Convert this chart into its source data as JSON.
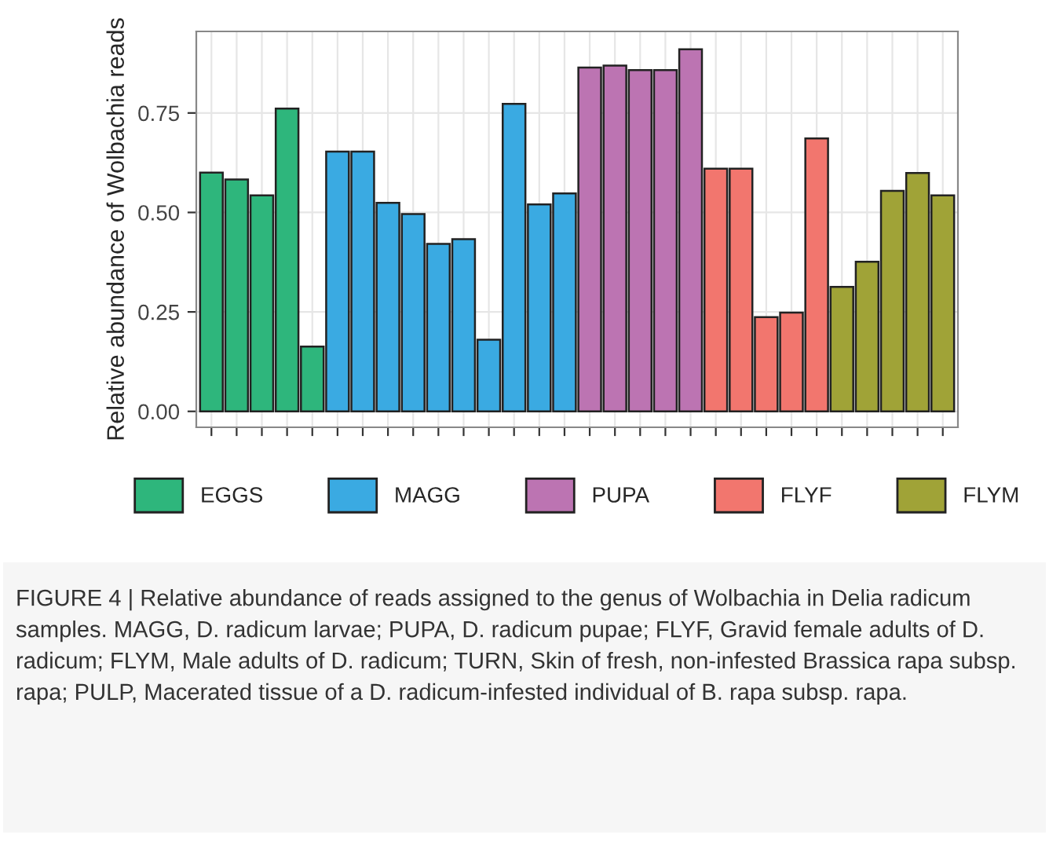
{
  "chart_data": {
    "type": "bar",
    "ylabel": "Relative abundance of Wolbachia reads",
    "categories": [
      null,
      null,
      null,
      null,
      null,
      null,
      null,
      null,
      null,
      null,
      null,
      null,
      null,
      null,
      null,
      null,
      null,
      null,
      null,
      null,
      null,
      null,
      null,
      null,
      null,
      null,
      null,
      null,
      null,
      null
    ],
    "series": [
      {
        "name": "EGGS",
        "color": "#2eb67c",
        "values": [
          0.6,
          0.583,
          0.543,
          0.761,
          0.163,
          null,
          null,
          null,
          null,
          null,
          null,
          null,
          null,
          null,
          null,
          null,
          null,
          null,
          null,
          null,
          null,
          null,
          null,
          null,
          null,
          null,
          null,
          null,
          null,
          null
        ]
      },
      {
        "name": "MAGG",
        "color": "#3aaae2",
        "values": [
          null,
          null,
          null,
          null,
          null,
          0.653,
          0.653,
          0.524,
          0.496,
          0.421,
          0.433,
          0.18,
          0.773,
          0.52,
          0.548,
          null,
          null,
          null,
          null,
          null,
          null,
          null,
          null,
          null,
          null,
          null,
          null,
          null,
          null,
          null
        ]
      },
      {
        "name": "PUPA",
        "color": "#bc74b2",
        "values": [
          null,
          null,
          null,
          null,
          null,
          null,
          null,
          null,
          null,
          null,
          null,
          null,
          null,
          null,
          null,
          0.864,
          0.869,
          0.858,
          0.858,
          0.91,
          null,
          null,
          null,
          null,
          null,
          null,
          null,
          null,
          null,
          null
        ]
      },
      {
        "name": "FLYF",
        "color": "#f2766e",
        "values": [
          null,
          null,
          null,
          null,
          null,
          null,
          null,
          null,
          null,
          null,
          null,
          null,
          null,
          null,
          null,
          null,
          null,
          null,
          null,
          null,
          0.61,
          0.61,
          0.237,
          0.248,
          0.686,
          null,
          null,
          null,
          null,
          null
        ]
      },
      {
        "name": "FLYM",
        "color": "#a0a337",
        "values": [
          null,
          null,
          null,
          null,
          null,
          null,
          null,
          null,
          null,
          null,
          null,
          null,
          null,
          null,
          null,
          null,
          null,
          null,
          null,
          null,
          null,
          null,
          null,
          null,
          null,
          0.313,
          0.376,
          0.554,
          0.599,
          0.543
        ]
      }
    ],
    "ylim": [
      -0.04,
      0.955
    ],
    "yticks": [
      {
        "value": 0,
        "label": "0.00"
      },
      {
        "value": 0.25,
        "label": "0.25"
      },
      {
        "value": 0.5,
        "label": "0.50"
      },
      {
        "value": 0.75,
        "label": "0.75"
      }
    ],
    "grid": true,
    "legend": "bottom",
    "annotations": [
      "FIGURE 4 | Relative abundance of reads assigned to the genus of Wolbachia in Delia radicum samples. MAGG, D. radicum larvae; PUPA, D. radicum pupae; FLYF, Gravid female adults of D. radicum; FLYM, Male adults of D. radicum; TURN, Skin of fresh, non-infested Brassica rapa subsp. rapa; PULP, Macerated tissue of a D. radicum-infested individual of B. rapa subsp. rapa."
    ]
  }
}
